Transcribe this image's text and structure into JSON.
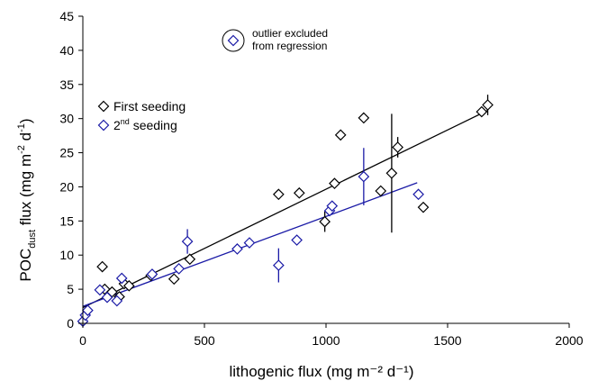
{
  "chart_data": {
    "type": "scatter",
    "title": "",
    "xlabel": "lithogenic flux (mg m⁻² d⁻¹)",
    "ylabel_parts": {
      "a": "POC",
      "sub": "dust",
      "b": " flux (mg m",
      "sup1": "-2",
      "c": " d",
      "sup2": "-1",
      "d": ")"
    },
    "xlim": [
      0,
      2000
    ],
    "ylim": [
      0,
      45
    ],
    "xticks": [
      0,
      500,
      1000,
      1500,
      2000
    ],
    "yticks": [
      0,
      5,
      10,
      15,
      20,
      25,
      30,
      35,
      40,
      45
    ],
    "grid": false,
    "legend": {
      "position": "upper-left",
      "entries": [
        {
          "label": "First seeding",
          "marker": "diamond",
          "color": "#000000"
        },
        {
          "label_main": "2",
          "label_sup": "nd",
          "label_rest": " seeding",
          "marker": "diamond",
          "color": "#1a1aa6"
        }
      ]
    },
    "annotation": {
      "line1": "outlier excluded",
      "line2": "from regression",
      "marker": "diamond-circled",
      "color": "#1a1aa6"
    },
    "series": [
      {
        "color": "#000000",
        "points": [
          {
            "x": 80,
            "y": 8.3
          },
          {
            "x": 90,
            "y": 5.0
          },
          {
            "x": 120,
            "y": 4.6
          },
          {
            "x": 150,
            "y": 3.9
          },
          {
            "x": 170,
            "y": 5.8
          },
          {
            "x": 190,
            "y": 5.5
          },
          {
            "x": 280,
            "y": 7.0
          },
          {
            "x": 375,
            "y": 6.5
          },
          {
            "x": 440,
            "y": 9.4
          },
          {
            "x": 805,
            "y": 18.9
          },
          {
            "x": 890,
            "y": 19.1
          },
          {
            "x": 995,
            "y": 14.9,
            "err": 1.5
          },
          {
            "x": 1035,
            "y": 20.5
          },
          {
            "x": 1060,
            "y": 27.6
          },
          {
            "x": 1155,
            "y": 30.1
          },
          {
            "x": 1225,
            "y": 19.4
          },
          {
            "x": 1270,
            "y": 22.0,
            "err": 8.7
          },
          {
            "x": 1295,
            "y": 25.8,
            "err": 1.5
          },
          {
            "x": 1400,
            "y": 17.0
          },
          {
            "x": 1640,
            "y": 31.0
          },
          {
            "x": 1665,
            "y": 32.0,
            "err": 1.5
          }
        ],
        "fit": {
          "x": [
            0,
            1665
          ],
          "y": [
            2.3,
            31.2
          ]
        }
      },
      {
        "color": "#1a1aa6",
        "points": [
          {
            "x": 0,
            "y": 0.3
          },
          {
            "x": 10,
            "y": 1.2
          },
          {
            "x": 20,
            "y": 1.9
          },
          {
            "x": 70,
            "y": 4.9
          },
          {
            "x": 100,
            "y": 3.8
          },
          {
            "x": 140,
            "y": 3.3
          },
          {
            "x": 160,
            "y": 6.6
          },
          {
            "x": 285,
            "y": 7.2
          },
          {
            "x": 395,
            "y": 8.0
          },
          {
            "x": 430,
            "y": 12.0,
            "err": 1.8
          },
          {
            "x": 635,
            "y": 10.9
          },
          {
            "x": 685,
            "y": 11.8
          },
          {
            "x": 805,
            "y": 8.5,
            "err": 2.5
          },
          {
            "x": 880,
            "y": 12.2
          },
          {
            "x": 1015,
            "y": 16.5
          },
          {
            "x": 1025,
            "y": 17.2
          },
          {
            "x": 1155,
            "y": 21.5,
            "err": 4.2
          },
          {
            "x": 1380,
            "y": 18.9
          }
        ],
        "fit": {
          "x": [
            0,
            1375
          ],
          "y": [
            2.5,
            20.6
          ]
        }
      }
    ]
  }
}
